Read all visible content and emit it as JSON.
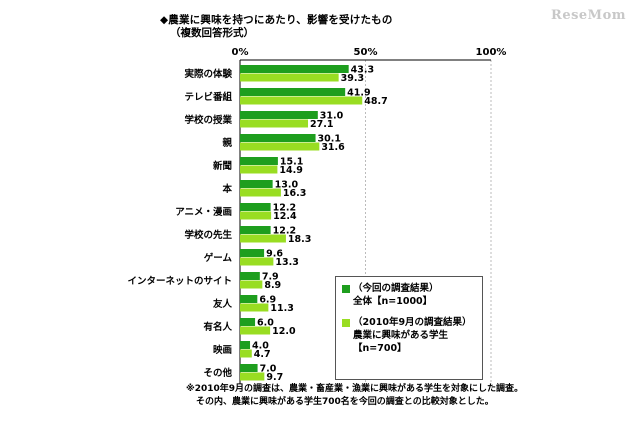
{
  "header": {
    "title": "◆農業に興味を持つにあたり、影響を受けたもの",
    "subtitle": "（複数回答形式）",
    "watermark": "ReseMom"
  },
  "legend": {
    "current_label": "（今回の調査結果）",
    "current_sub": "全体【n=1000】",
    "past_label": "（2010年9月の調査結果）",
    "past_sub": "農業に興味がある学生",
    "past_n": "【n=700】"
  },
  "footnotes": [
    "※2010年9月の調査は、農業・畜産業・漁業に興味がある学生を対象にした調査。",
    "その内、農業に興味がある学生700名を今回の調査との比較対象とした。"
  ],
  "colors": {
    "current": "#1e9e1e",
    "past": "#99dd22"
  },
  "chart_data": {
    "type": "bar",
    "orientation": "horizontal",
    "categories": [
      "実際の体験",
      "テレビ番組",
      "学校の授業",
      "親",
      "新聞",
      "本",
      "アニメ・漫画",
      "学校の先生",
      "ゲーム",
      "インターネットのサイト",
      "友人",
      "有名人",
      "映画",
      "その他"
    ],
    "series": [
      {
        "name": "（今回の調査結果）全体【n=1000】",
        "values": [
          43.3,
          41.9,
          31.0,
          30.1,
          15.1,
          13.0,
          12.2,
          12.2,
          9.6,
          7.9,
          6.9,
          6.0,
          4.0,
          7.0
        ]
      },
      {
        "name": "（2010年9月の調査結果）農業に興味がある学生【n=700】",
        "values": [
          39.3,
          48.7,
          27.1,
          31.6,
          14.9,
          16.3,
          12.4,
          18.3,
          13.3,
          8.9,
          11.3,
          12.0,
          4.7,
          9.7
        ]
      }
    ],
    "xticks": [
      "0%",
      "50%",
      "100%"
    ],
    "xlim": [
      0,
      100
    ],
    "grid": true,
    "legend_position": "bottom-right"
  }
}
